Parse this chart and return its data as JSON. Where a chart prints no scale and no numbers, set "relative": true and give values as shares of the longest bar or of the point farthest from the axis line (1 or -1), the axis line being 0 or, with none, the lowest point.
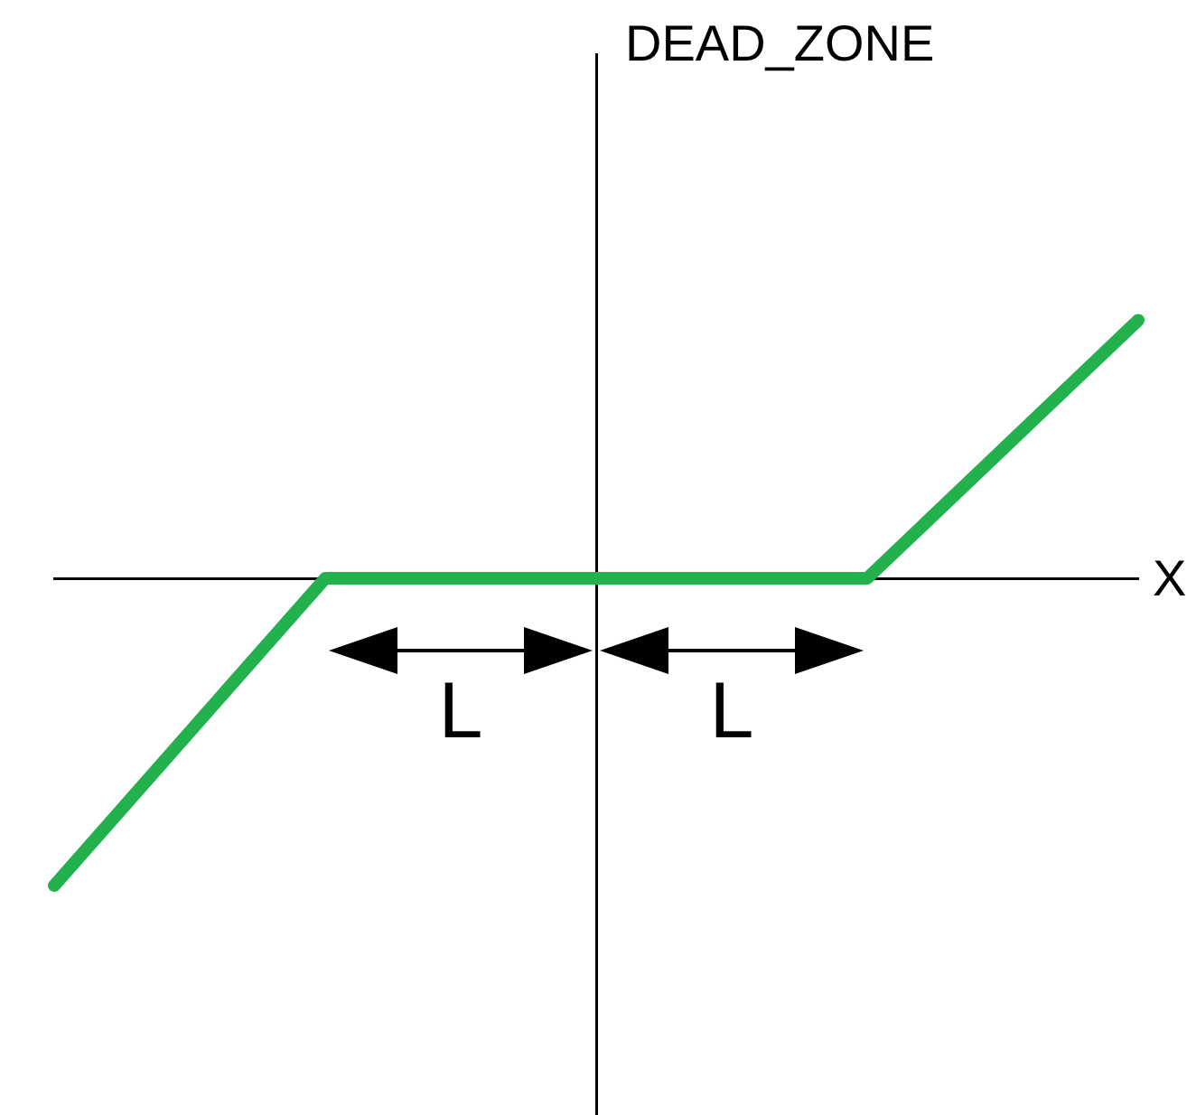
{
  "chart_data": {
    "type": "line",
    "relative": true,
    "xlabel": "X",
    "ylabel": "DEAD_ZONE",
    "categories": [
      null,
      null,
      null,
      null,
      null
    ],
    "series": [
      {
        "color": "#22b14c",
        "values": [
          -1,
          0,
          0,
          0,
          0.84
        ]
      }
    ],
    "annotations": [
      "L",
      "L"
    ],
    "marker": "none",
    "line_style": "solid",
    "tick_labels": false
  }
}
